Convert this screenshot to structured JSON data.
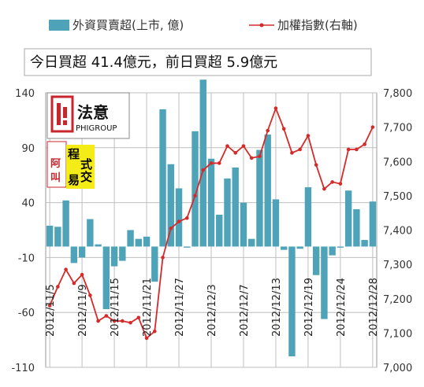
{
  "chart_data": {
    "type": "bar",
    "title": "",
    "headline": "今日買超 41.4億元，前日買超 5.9億元",
    "logo": {
      "brand_cn": "法意",
      "brand_en": "PHIGROUP",
      "seal_chars": [
        "程",
        "式",
        "交",
        "易"
      ],
      "seal_left_chars": [
        "阿",
        "叫"
      ]
    },
    "legend": [
      {
        "name": "外資買賣超(上市, 億)",
        "kind": "bar"
      },
      {
        "name": "加權指數(右軸)",
        "kind": "line"
      }
    ],
    "colors": {
      "bar": "#4fa3b8",
      "line": "#d42a2a",
      "grid": "#bfbfbf",
      "plot_bg": "#ffffff"
    },
    "grid": true,
    "left_axis": {
      "ylim": [
        -110,
        140
      ],
      "ticks": [
        "140",
        "90",
        "40",
        "-10",
        "-60",
        "-110"
      ],
      "tick_values": [
        140,
        90,
        40,
        -10,
        -60,
        -110
      ]
    },
    "right_axis": {
      "ylim": [
        7000,
        7800
      ],
      "ticks": [
        "7,800",
        "7,700",
        "7,600",
        "7,500",
        "7,400",
        "7,300",
        "7,200",
        "7,100",
        "7,000"
      ],
      "tick_values": [
        7800,
        7700,
        7600,
        7500,
        7400,
        7300,
        7200,
        7100,
        7000
      ]
    },
    "x_labels": [
      {
        "text": "2012/11/5",
        "index": 0
      },
      {
        "text": "2012/11/9",
        "index": 4
      },
      {
        "text": "2012/11/15",
        "index": 8
      },
      {
        "text": "2012/11/21",
        "index": 12
      },
      {
        "text": "2012/11/27",
        "index": 16
      },
      {
        "text": "2012/12/3",
        "index": 20
      },
      {
        "text": "2012/12/7",
        "index": 24
      },
      {
        "text": "2012/12/13",
        "index": 28
      },
      {
        "text": "2012/12/19",
        "index": 32
      },
      {
        "text": "2012/12/24",
        "index": 36
      },
      {
        "text": "2012/12/28",
        "index": 40
      }
    ],
    "series": [
      {
        "name": "外資買賣超(上市, 億)",
        "kind": "bar",
        "values": [
          19,
          18,
          42,
          -15,
          -10,
          25,
          2,
          -57,
          -18,
          -13,
          15,
          7,
          9,
          -32,
          125,
          75,
          53,
          -1,
          105,
          152,
          80,
          29,
          62,
          72,
          40,
          7,
          88,
          102,
          43,
          -3,
          -100,
          -2,
          54,
          -26,
          -66,
          -8,
          -1,
          51,
          34,
          6,
          41
        ]
      },
      {
        "name": "加權指數(右軸)",
        "kind": "line",
        "values": [
          7180,
          7235,
          7285,
          7245,
          7270,
          7210,
          7135,
          7150,
          7135,
          7135,
          7130,
          7145,
          7085,
          7105,
          7320,
          7405,
          7425,
          7435,
          7500,
          7575,
          7595,
          7595,
          7645,
          7625,
          7645,
          7610,
          7615,
          7690,
          7755,
          7695,
          7625,
          7635,
          7675,
          7590,
          7520,
          7540,
          7535,
          7635,
          7635,
          7650,
          7700
        ]
      }
    ]
  }
}
